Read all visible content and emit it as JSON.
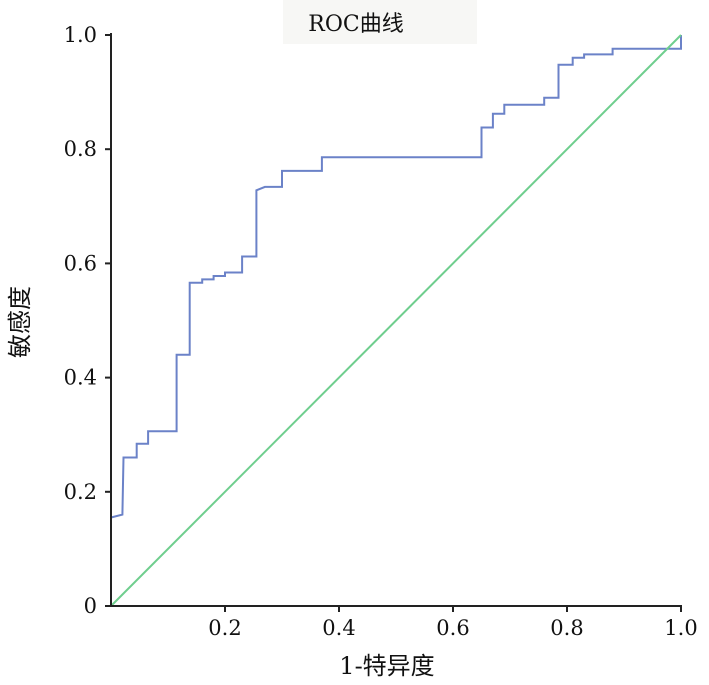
{
  "chart_data": {
    "type": "line",
    "title": "ROC曲线",
    "xlabel": "1-特异度",
    "ylabel": "敏感度",
    "xlim": [
      0,
      1
    ],
    "ylim": [
      0,
      1
    ],
    "x_ticks": [
      "0.2",
      "0.4",
      "0.6",
      "0.8",
      "1.0"
    ],
    "y_ticks": [
      "0",
      "0.2",
      "0.4",
      "0.6",
      "0.8",
      "1.0"
    ],
    "grid": false,
    "series": [
      {
        "color": "#6b82c8",
        "points": [
          [
            0.0,
            0.155
          ],
          [
            0.02,
            0.16
          ],
          [
            0.022,
            0.26
          ],
          [
            0.045,
            0.26
          ],
          [
            0.045,
            0.284
          ],
          [
            0.065,
            0.284
          ],
          [
            0.065,
            0.306
          ],
          [
            0.115,
            0.306
          ],
          [
            0.115,
            0.44
          ],
          [
            0.138,
            0.44
          ],
          [
            0.138,
            0.566
          ],
          [
            0.16,
            0.566
          ],
          [
            0.16,
            0.572
          ],
          [
            0.18,
            0.572
          ],
          [
            0.18,
            0.578
          ],
          [
            0.2,
            0.578
          ],
          [
            0.2,
            0.584
          ],
          [
            0.23,
            0.584
          ],
          [
            0.23,
            0.612
          ],
          [
            0.255,
            0.612
          ],
          [
            0.255,
            0.728
          ],
          [
            0.27,
            0.734
          ],
          [
            0.3,
            0.734
          ],
          [
            0.3,
            0.762
          ],
          [
            0.37,
            0.762
          ],
          [
            0.37,
            0.786
          ],
          [
            0.65,
            0.786
          ],
          [
            0.65,
            0.838
          ],
          [
            0.67,
            0.838
          ],
          [
            0.67,
            0.862
          ],
          [
            0.69,
            0.862
          ],
          [
            0.69,
            0.878
          ],
          [
            0.76,
            0.878
          ],
          [
            0.76,
            0.89
          ],
          [
            0.785,
            0.89
          ],
          [
            0.785,
            0.948
          ],
          [
            0.81,
            0.948
          ],
          [
            0.81,
            0.96
          ],
          [
            0.83,
            0.96
          ],
          [
            0.83,
            0.966
          ],
          [
            0.88,
            0.966
          ],
          [
            0.88,
            0.976
          ],
          [
            1.0,
            0.976
          ],
          [
            1.0,
            1.0
          ]
        ]
      },
      {
        "color": "#6fce8e",
        "points": [
          [
            0,
            0
          ],
          [
            1,
            1
          ]
        ]
      }
    ]
  }
}
